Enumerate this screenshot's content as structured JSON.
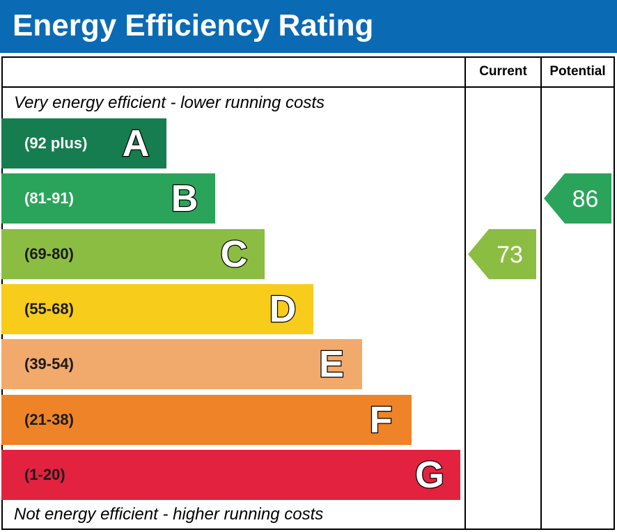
{
  "header": {
    "title": "Energy Efficiency Rating"
  },
  "columns": {
    "current": "Current",
    "potential": "Potential"
  },
  "captions": {
    "top": "Very energy efficient - lower running costs",
    "bottom": "Not energy efficient - higher running costs"
  },
  "chart_data": {
    "type": "bar",
    "title": "Energy Efficiency Rating",
    "bands": [
      {
        "letter": "A",
        "range": "(92 plus)",
        "color": "#157d4f",
        "text_color": "#ffffff"
      },
      {
        "letter": "B",
        "range": "(81-91)",
        "color": "#2aa45a",
        "text_color": "#ffffff"
      },
      {
        "letter": "C",
        "range": "(69-80)",
        "color": "#8cbd43",
        "text_color": "#1a1a1a"
      },
      {
        "letter": "D",
        "range": "(55-68)",
        "color": "#f7cc1a",
        "text_color": "#1a1a1a"
      },
      {
        "letter": "E",
        "range": "(39-54)",
        "color": "#f2aa6c",
        "text_color": "#1a1a1a"
      },
      {
        "letter": "F",
        "range": "(21-38)",
        "color": "#ee8427",
        "text_color": "#1a1a1a"
      },
      {
        "letter": "G",
        "range": "(1-20)",
        "color": "#e2223f",
        "text_color": "#1a1a1a"
      }
    ],
    "ratings": {
      "current": {
        "value": 73,
        "band": "C",
        "color": "#8cbd43"
      },
      "potential": {
        "value": 86,
        "band": "B",
        "color": "#2aa45a"
      }
    }
  }
}
